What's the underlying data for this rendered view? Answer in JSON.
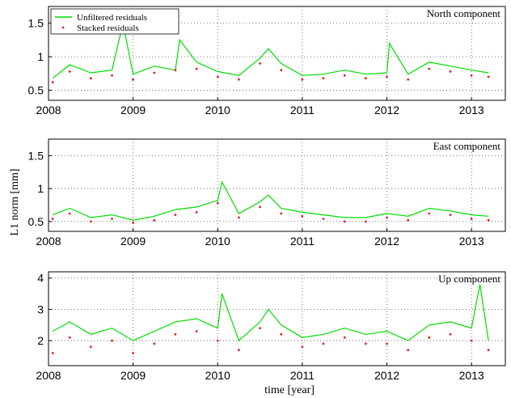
{
  "chart_data": {
    "type": "line",
    "ylabel": "L1 norm [mm]",
    "xlabel": "time [year]",
    "legend": {
      "placement": "top-left",
      "entries": [
        {
          "label": "Unfiltered residuals",
          "color": "#00dd00",
          "style": "line"
        },
        {
          "label": "Stacked residuals",
          "color": "#dd2222",
          "style": "dots"
        }
      ]
    },
    "grid": true,
    "xlim": [
      2008,
      2013.4
    ],
    "xticks": [
      "2008",
      "2009",
      "2010",
      "2011",
      "2012",
      "2013"
    ],
    "panels": [
      {
        "title": "North component",
        "ylim": [
          0.35,
          1.75
        ],
        "yticks": [
          "0.5",
          "1",
          "1.5"
        ],
        "series": [
          {
            "name": "Unfiltered residuals",
            "color": "#00dd00",
            "x": [
              2008.05,
              2008.25,
              2008.5,
              2008.75,
              2008.88,
              2009.0,
              2009.25,
              2009.5,
              2009.55,
              2009.75,
              2010.0,
              2010.25,
              2010.5,
              2010.6,
              2010.75,
              2011.0,
              2011.25,
              2011.5,
              2011.75,
              2012.0,
              2012.03,
              2012.25,
              2012.5,
              2012.75,
              2013.0,
              2013.2
            ],
            "y": [
              0.68,
              0.88,
              0.76,
              0.8,
              1.5,
              0.74,
              0.86,
              0.8,
              1.25,
              0.92,
              0.78,
              0.72,
              0.98,
              1.12,
              0.9,
              0.72,
              0.74,
              0.8,
              0.74,
              0.76,
              1.2,
              0.74,
              0.92,
              0.86,
              0.8,
              0.76
            ]
          },
          {
            "name": "Stacked residuals",
            "color": "#dd2222",
            "x": [
              2008.05,
              2008.25,
              2008.5,
              2008.75,
              2009.0,
              2009.25,
              2009.5,
              2009.75,
              2010.0,
              2010.25,
              2010.5,
              2010.75,
              2011.0,
              2011.25,
              2011.5,
              2011.75,
              2012.0,
              2012.25,
              2012.5,
              2012.75,
              2013.0,
              2013.2
            ],
            "y": [
              0.62,
              0.78,
              0.68,
              0.72,
              0.66,
              0.76,
              0.8,
              0.82,
              0.7,
              0.66,
              0.9,
              0.8,
              0.66,
              0.68,
              0.72,
              0.68,
              0.7,
              0.66,
              0.82,
              0.78,
              0.72,
              0.7
            ]
          }
        ]
      },
      {
        "title": "East component",
        "ylim": [
          0.35,
          1.75
        ],
        "yticks": [
          "0.5",
          "1",
          "1.5"
        ],
        "series": [
          {
            "name": "Unfiltered residuals",
            "color": "#00dd00",
            "x": [
              2008.05,
              2008.25,
              2008.5,
              2008.75,
              2009.0,
              2009.25,
              2009.5,
              2009.75,
              2010.0,
              2010.05,
              2010.25,
              2010.5,
              2010.6,
              2010.75,
              2011.0,
              2011.25,
              2011.5,
              2011.75,
              2012.0,
              2012.25,
              2012.5,
              2012.75,
              2013.0,
              2013.2
            ],
            "y": [
              0.6,
              0.7,
              0.56,
              0.6,
              0.52,
              0.58,
              0.68,
              0.72,
              0.82,
              1.1,
              0.62,
              0.8,
              0.9,
              0.7,
              0.64,
              0.6,
              0.56,
              0.56,
              0.62,
              0.58,
              0.7,
              0.66,
              0.6,
              0.58
            ]
          },
          {
            "name": "Stacked residuals",
            "color": "#dd2222",
            "x": [
              2008.05,
              2008.25,
              2008.5,
              2008.75,
              2009.0,
              2009.25,
              2009.5,
              2009.75,
              2010.0,
              2010.25,
              2010.5,
              2010.75,
              2011.0,
              2011.25,
              2011.5,
              2011.75,
              2012.0,
              2012.25,
              2012.5,
              2012.75,
              2013.0,
              2013.2
            ],
            "y": [
              0.54,
              0.62,
              0.5,
              0.54,
              0.48,
              0.52,
              0.6,
              0.64,
              0.78,
              0.56,
              0.72,
              0.62,
              0.58,
              0.54,
              0.5,
              0.5,
              0.56,
              0.52,
              0.62,
              0.6,
              0.54,
              0.52
            ]
          }
        ]
      },
      {
        "title": "Up component",
        "ylim": [
          1.2,
          4.2
        ],
        "yticks": [
          "2",
          "3",
          "4"
        ],
        "series": [
          {
            "name": "Unfiltered residuals",
            "color": "#00dd00",
            "x": [
              2008.05,
              2008.25,
              2008.5,
              2008.75,
              2009.0,
              2009.25,
              2009.5,
              2009.75,
              2010.0,
              2010.05,
              2010.25,
              2010.5,
              2010.6,
              2010.75,
              2011.0,
              2011.25,
              2011.5,
              2011.75,
              2012.0,
              2012.25,
              2012.5,
              2012.75,
              2013.0,
              2013.1,
              2013.2
            ],
            "y": [
              2.3,
              2.6,
              2.2,
              2.4,
              2.0,
              2.3,
              2.6,
              2.7,
              2.4,
              3.5,
              2.0,
              2.6,
              3.0,
              2.5,
              2.1,
              2.2,
              2.4,
              2.2,
              2.3,
              2.0,
              2.5,
              2.6,
              2.4,
              3.8,
              2.0
            ]
          },
          {
            "name": "Stacked residuals",
            "color": "#dd2222",
            "x": [
              2008.05,
              2008.25,
              2008.5,
              2008.75,
              2009.0,
              2009.25,
              2009.5,
              2009.75,
              2010.0,
              2010.25,
              2010.5,
              2010.75,
              2011.0,
              2011.25,
              2011.5,
              2011.75,
              2012.0,
              2012.25,
              2012.5,
              2012.75,
              2013.0,
              2013.2
            ],
            "y": [
              1.6,
              2.1,
              1.8,
              2.0,
              1.6,
              1.9,
              2.2,
              2.3,
              2.0,
              1.7,
              2.4,
              2.2,
              1.8,
              1.9,
              2.1,
              1.9,
              1.9,
              1.7,
              2.1,
              2.2,
              2.0,
              1.7
            ]
          }
        ]
      }
    ]
  }
}
